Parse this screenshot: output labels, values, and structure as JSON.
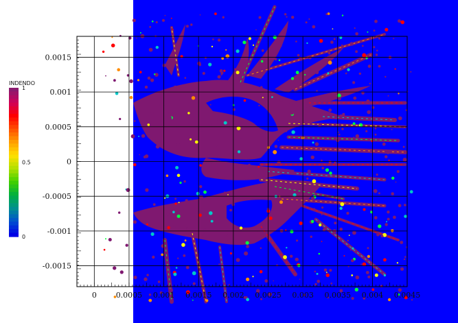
{
  "chart_data": {
    "type": "heatmap",
    "title": "",
    "xlabel": "",
    "ylabel": "",
    "xlim": [
      -0.00025,
      0.0045
    ],
    "ylim": [
      -0.0018,
      0.0018
    ],
    "x_ticks": [
      {
        "value": 0,
        "label": "0"
      },
      {
        "value": 0.0005,
        "label": "0.0005"
      },
      {
        "value": 0.001,
        "label": "0.001"
      },
      {
        "value": 0.0015,
        "label": "0.0015"
      },
      {
        "value": 0.002,
        "label": "0.002"
      },
      {
        "value": 0.0025,
        "label": "0.0025"
      },
      {
        "value": 0.003,
        "label": "0.003"
      },
      {
        "value": 0.0035,
        "label": "0.0035"
      },
      {
        "value": 0.004,
        "label": "0.004"
      },
      {
        "value": 0.0045,
        "label": "0.0045"
      }
    ],
    "y_ticks": [
      {
        "value": 0.0015,
        "label": "0.0015"
      },
      {
        "value": 0.001,
        "label": "0.001"
      },
      {
        "value": 0.0005,
        "label": "0.0005"
      },
      {
        "value": 0,
        "label": "0"
      },
      {
        "value": -0.0005,
        "label": "-0.0005"
      },
      {
        "value": -0.001,
        "label": "-0.001"
      },
      {
        "value": -0.0015,
        "label": "-0.0015"
      }
    ],
    "grid": true,
    "colorbar": {
      "title": "INDENDO",
      "min": 0,
      "max": 1,
      "ticks": [
        {
          "value": 1,
          "label": "1"
        },
        {
          "value": 0.5,
          "label": "0.5"
        },
        {
          "value": 0,
          "label": "0"
        }
      ],
      "colors": [
        "#0000e6",
        "#0050d0",
        "#009090",
        "#00b040",
        "#40d000",
        "#b0e000",
        "#ffe000",
        "#ffa000",
        "#ff5000",
        "#ff0000",
        "#d0005a",
        "#8a1a6e"
      ]
    },
    "background_value": 0,
    "background_color": "#0000ff",
    "field_color": "#7f1870",
    "edge_colors": [
      "#ffff00",
      "#00ff40",
      "#ff8c00",
      "#ff0000",
      "#00c8c8"
    ]
  }
}
